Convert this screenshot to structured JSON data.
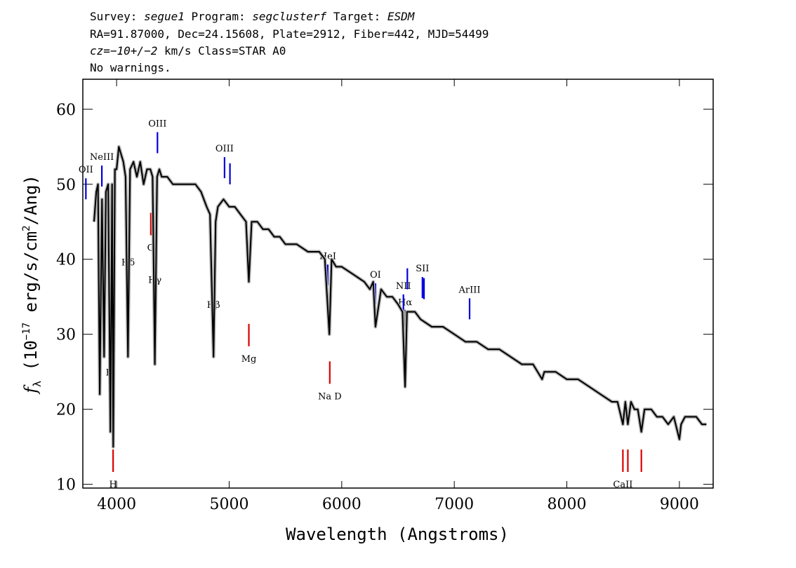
{
  "header": {
    "line1": {
      "survey_label": "Survey:",
      "survey": "segue1",
      "program_label": "Program:",
      "program": "segclusterf",
      "target_label": "Target:",
      "target": "ESDM"
    },
    "line2": "RA=91.87000, Dec=24.15608, Plate=2912, Fiber=442, MJD=54499",
    "line3": {
      "cz": "cz=−10+/−2",
      "rest": " km/s Class=STAR A0"
    },
    "line4": "No warnings."
  },
  "colors": {
    "emission": "#0000dd",
    "absorption": "#dd0000",
    "spectrum": "#000000",
    "error_band": "#b4b4b4"
  },
  "chart_data": {
    "type": "line",
    "xlabel": "Wavelength (Angstroms)",
    "ylabel": "f_λ (10^-17 erg/s/cm^2/Ang)",
    "xlim": [
      3700,
      9300
    ],
    "ylim": [
      9.5,
      64
    ],
    "xticks": [
      4000,
      5000,
      6000,
      7000,
      8000,
      9000
    ],
    "yticks": [
      10,
      20,
      30,
      40,
      50,
      60
    ],
    "grid": false,
    "series": [
      {
        "x": [
          3800,
          3820,
          3835,
          3850,
          3870,
          3889,
          3905,
          3925,
          3945,
          3960,
          3970,
          3985,
          4000,
          4020,
          4040,
          4060,
          4080,
          4101,
          4120,
          4150,
          4180,
          4210,
          4240,
          4270,
          4300,
          4320,
          4340,
          4360,
          4380,
          4400,
          4450,
          4500,
          4550,
          4600,
          4650,
          4700,
          4750,
          4800,
          4830,
          4861,
          4880,
          4900,
          4950,
          5000,
          5050,
          5100,
          5150,
          5175,
          5200,
          5250,
          5300,
          5350,
          5400,
          5450,
          5500,
          5600,
          5700,
          5800,
          5850,
          5890,
          5910,
          5950,
          6000,
          6100,
          6200,
          6250,
          6280,
          6300,
          6350,
          6400,
          6450,
          6500,
          6540,
          6563,
          6580,
          6600,
          6650,
          6700,
          6800,
          6900,
          7000,
          7100,
          7200,
          7300,
          7400,
          7500,
          7600,
          7700,
          7780,
          7800,
          7900,
          8000,
          8100,
          8200,
          8300,
          8400,
          8450,
          8498,
          8520,
          8542,
          8570,
          8600,
          8630,
          8662,
          8690,
          8750,
          8800,
          8850,
          8900,
          8950,
          9000,
          9015,
          9050,
          9100,
          9150,
          9200,
          9240
        ],
        "y": [
          45,
          49,
          50,
          22,
          48,
          27,
          49,
          50,
          17,
          50,
          15,
          52,
          52,
          55,
          54,
          53,
          51,
          27,
          52,
          53,
          51,
          53,
          50,
          52,
          52,
          51,
          26,
          51,
          52,
          51,
          51,
          50,
          50,
          50,
          50,
          50,
          49,
          47,
          46,
          27,
          45,
          47,
          48,
          47,
          47,
          46,
          45,
          37,
          45,
          45,
          44,
          44,
          43,
          43,
          42,
          42,
          41,
          41,
          40,
          30,
          40,
          39,
          39,
          38,
          37,
          36,
          37,
          31,
          36,
          35,
          35,
          34,
          33,
          23,
          33,
          33,
          33,
          32,
          31,
          31,
          30,
          29,
          29,
          28,
          28,
          27,
          26,
          26,
          24,
          25,
          25,
          24,
          24,
          23,
          22,
          21,
          21,
          18,
          21,
          18,
          21,
          20,
          20,
          17,
          20,
          20,
          19,
          19,
          18,
          19,
          16,
          18,
          19,
          19,
          19,
          18,
          18
        ]
      }
    ],
    "spectral_lines": [
      {
        "label": "Hδ",
        "wavelength": 4102,
        "kind": "balmer"
      },
      {
        "label": "Hγ",
        "wavelength": 4340,
        "kind": "balmer"
      },
      {
        "label": "Hβ",
        "wavelength": 4861,
        "kind": "emission"
      },
      {
        "label": "Hα",
        "wavelength": 6563,
        "kind": "balmer"
      },
      {
        "label": "OII",
        "wavelength": 3727,
        "kind": "emission"
      },
      {
        "label": "NeIII",
        "wavelength": 3869,
        "kind": "emission"
      },
      {
        "label": "OIII",
        "wavelength": 4363,
        "kind": "emission"
      },
      {
        "label": "OIII",
        "wavelength": 4959,
        "kind": "emission"
      },
      {
        "label": "OIII",
        "wavelength": 5007,
        "kind": "emission"
      },
      {
        "label": "HeI",
        "wavelength": 5876,
        "kind": "emission"
      },
      {
        "label": "OI",
        "wavelength": 6300,
        "kind": "emission"
      },
      {
        "label": "NII",
        "wavelength": 6548,
        "kind": "emission"
      },
      {
        "label": "NII",
        "wavelength": 6583,
        "kind": "emission"
      },
      {
        "label": "SII",
        "wavelength": 6717,
        "kind": "emission"
      },
      {
        "label": "SII",
        "wavelength": 6731,
        "kind": "emission"
      },
      {
        "label": "ArIII",
        "wavelength": 7136,
        "kind": "emission"
      },
      {
        "label": "K",
        "wavelength": 3934,
        "kind": "absorption"
      },
      {
        "label": "H",
        "wavelength": 3969,
        "kind": "absorption"
      },
      {
        "label": "G",
        "wavelength": 4304,
        "kind": "absorption"
      },
      {
        "label": "Mg",
        "wavelength": 5175,
        "kind": "absorption"
      },
      {
        "label": "Na D",
        "wavelength": 5894,
        "kind": "absorption"
      },
      {
        "label": "CaII",
        "wavelength": 8498,
        "kind": "absorption"
      },
      {
        "label": "CaII",
        "wavelength": 8542,
        "kind": "absorption"
      },
      {
        "label": "CaII",
        "wavelength": 8662,
        "kind": "absorption"
      }
    ]
  }
}
